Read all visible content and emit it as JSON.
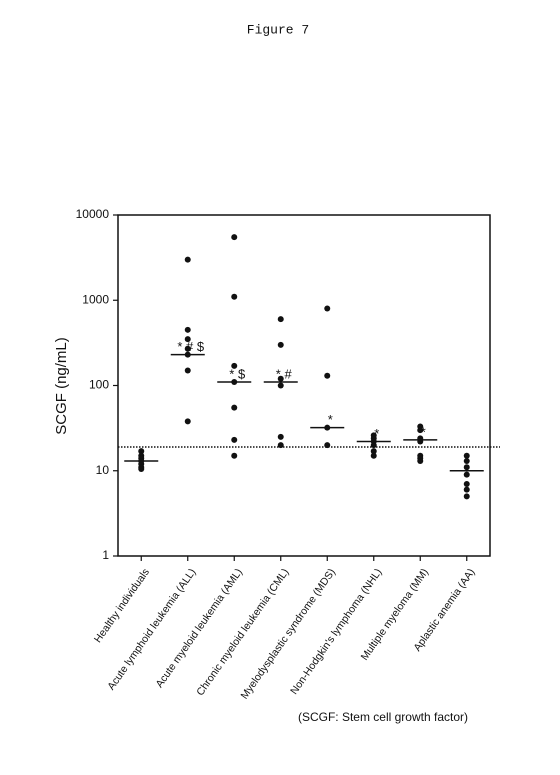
{
  "chart_data": {
    "type": "strip",
    "title": "Figure 7",
    "y_label": "SCGF (ng/mL)",
    "footnote": "(SCGF: Stem cell growth factor)",
    "log_scale": true,
    "ylim": [
      1,
      10000
    ],
    "yticks": [
      1,
      10,
      100,
      1000,
      10000
    ],
    "color": "#111111",
    "reference_line": 19,
    "categories": [
      "Healthy individuals",
      "Acute lymphoid leukemia (ALL)",
      "Acute myeloid leukemia (AML)",
      "Chronic myeloid leukemia (CML)",
      "Myelodysplastic syndrome (MDS)",
      "Non-Hodgkin's lymphoma (NHL)",
      "Multiple myeloma (MM)",
      "Aplastic anemia (AA)"
    ],
    "values": [
      [
        17,
        15,
        14,
        13,
        12,
        11,
        10.5
      ],
      [
        3000,
        450,
        350,
        270,
        230,
        150,
        38
      ],
      [
        5500,
        1100,
        170,
        110,
        55,
        23,
        15
      ],
      [
        600,
        300,
        120,
        100,
        25,
        20
      ],
      [
        800,
        130,
        32,
        20
      ],
      [
        26,
        24,
        22,
        20,
        17,
        15
      ],
      [
        33,
        30,
        24,
        22,
        15,
        14,
        13
      ],
      [
        15,
        13,
        11,
        9,
        7,
        6,
        5
      ]
    ],
    "medians": [
      13,
      230,
      110,
      110,
      32,
      22,
      23,
      10
    ],
    "annotations": [
      null,
      "* # $",
      "* $",
      "* #",
      "*",
      "*",
      "*",
      null
    ]
  }
}
